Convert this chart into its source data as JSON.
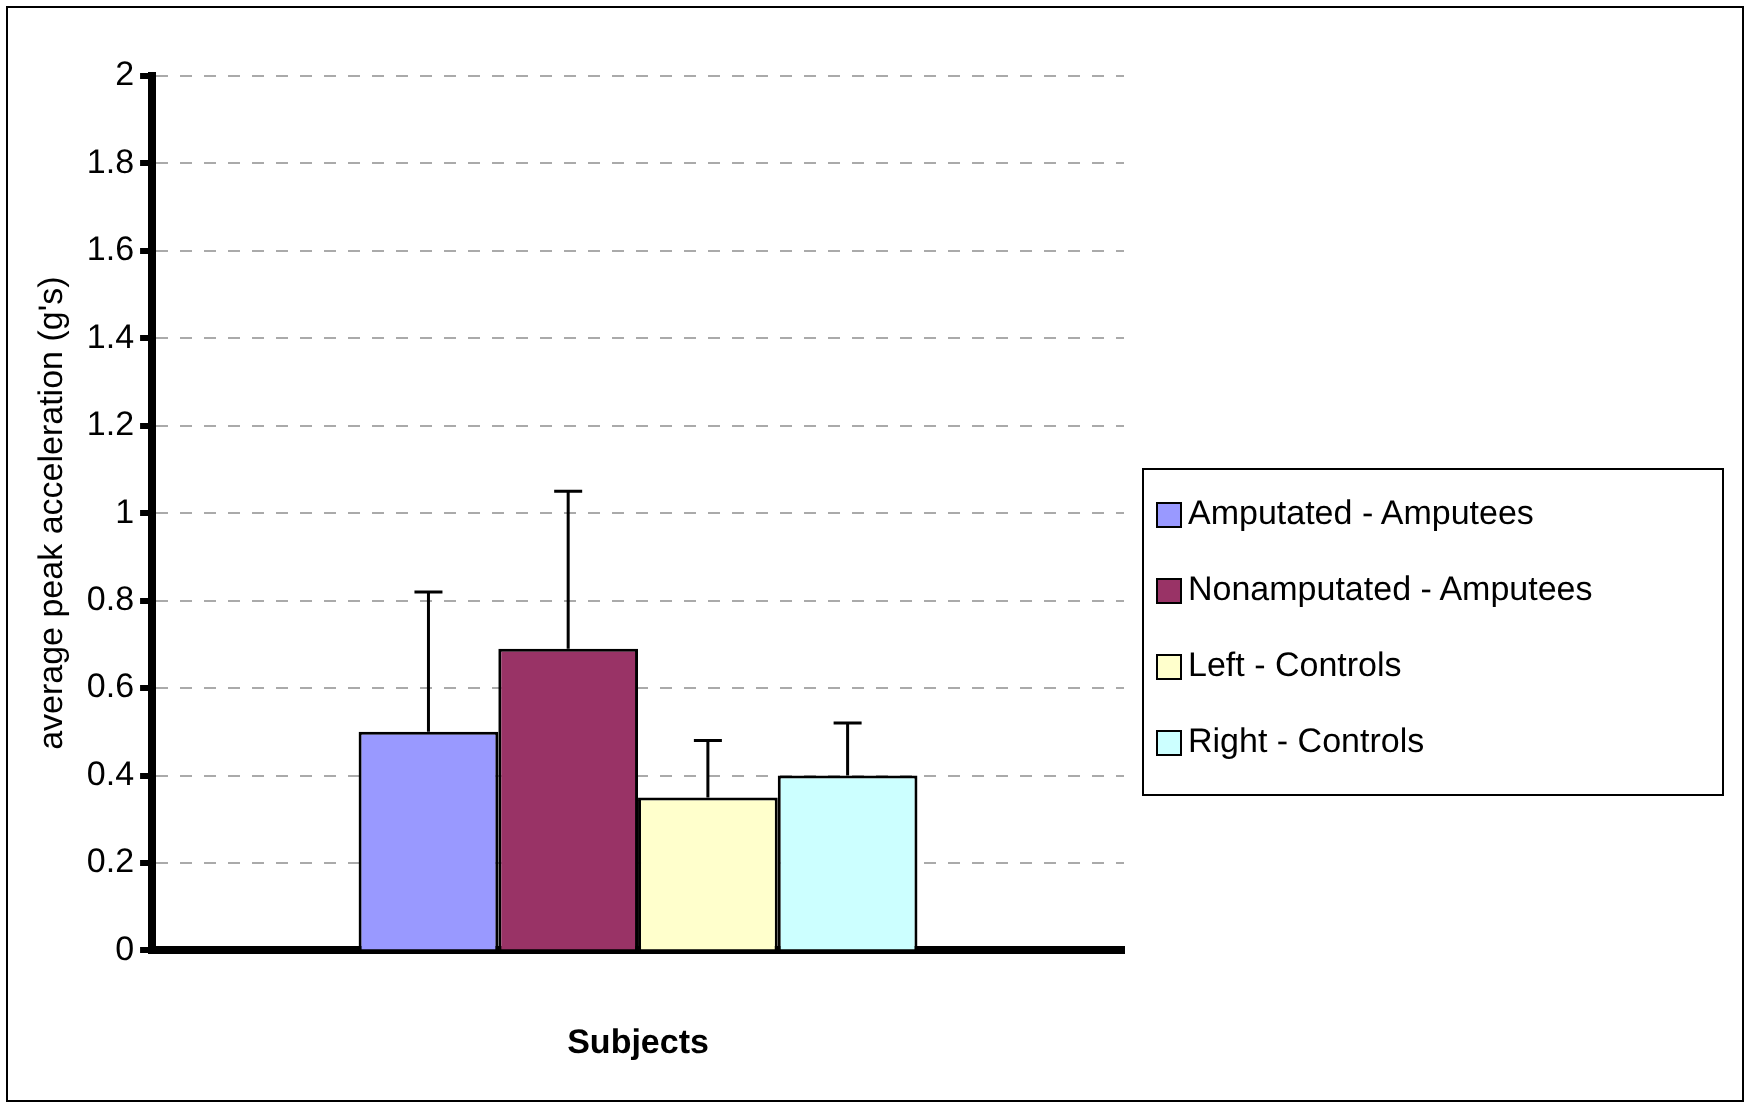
{
  "chart_data": {
    "type": "bar",
    "xlabel": "Subjects",
    "ylabel": "average peak acceleration (g's)",
    "categories": [
      null
    ],
    "series": [
      {
        "name": "Amputated - Amputees",
        "color": "#9999ff",
        "values": [
          0.5
        ],
        "errors": [
          [
            0.5,
            0.82
          ]
        ]
      },
      {
        "name": "Nonamputated - Amputees",
        "color": "#993366",
        "values": [
          0.69
        ],
        "errors": [
          [
            0.69,
            1.05
          ]
        ]
      },
      {
        "name": "Left - Controls",
        "color": "#ffffcc",
        "values": [
          0.35
        ],
        "errors": [
          [
            0.35,
            0.48
          ]
        ]
      },
      {
        "name": "Right - Controls",
        "color": "#ccffff",
        "values": [
          0.4
        ],
        "errors": [
          [
            0.4,
            0.52
          ]
        ]
      }
    ],
    "ylim": [
      0,
      2
    ],
    "yticks": [
      0,
      0.2,
      0.4,
      0.6,
      0.8,
      1,
      1.2,
      1.4,
      1.6,
      1.8,
      2
    ],
    "grid": "y",
    "legend": "right"
  }
}
